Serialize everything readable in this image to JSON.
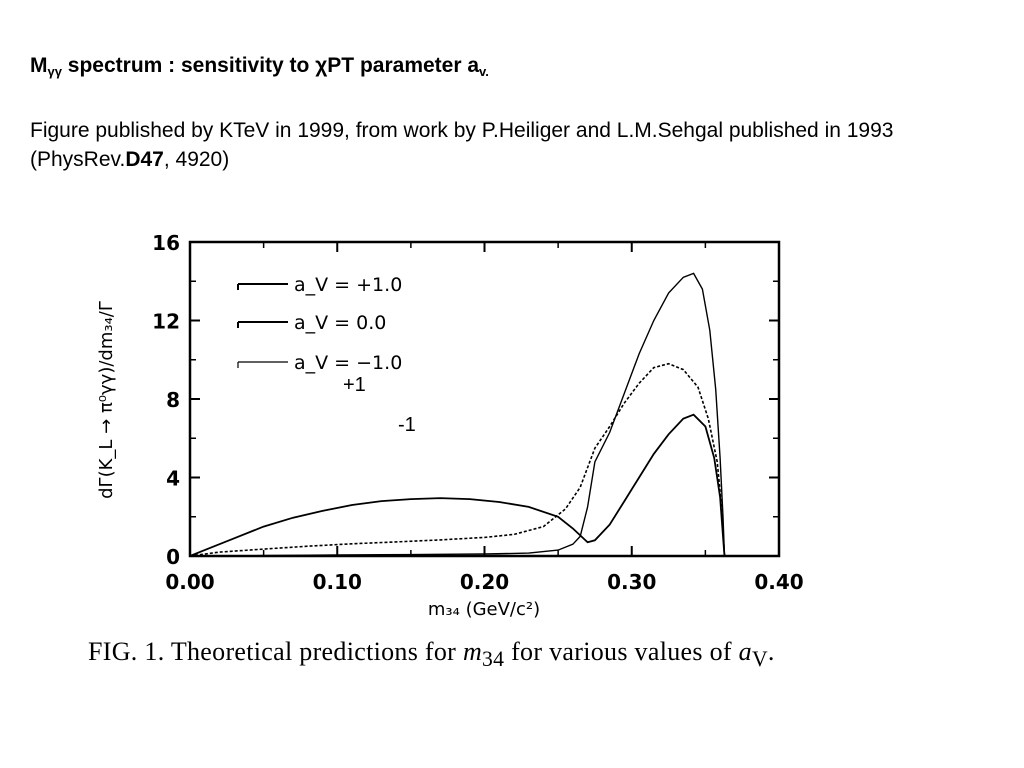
{
  "slide": {
    "title_main": "M",
    "title_sub": "γγ",
    "title_rest": " spectrum : sensitivity to χPT parameter a",
    "title_end_sub": "v.",
    "subtitle_a": "Figure published by KTeV in 1999, from work by P.Heiliger and L.M.Sehgal published in 1993 (PhysRev.",
    "subtitle_bold": "D47",
    "subtitle_b": ", 4920)"
  },
  "caption": {
    "label": "FIG. 1.",
    "text": " Theoretical predictions for ",
    "math": "m",
    "math_sub": "34",
    "text2": " for various values of ",
    "math2": "a",
    "math2_sub": "V",
    "end": "."
  },
  "annotations": {
    "plus_one": "+1",
    "minus_one": "-1"
  },
  "chart_data": {
    "type": "line",
    "xlabel": "m₃₄ (GeV/c²)",
    "ylabel": "dΓ(K_L → π⁰γγ)/dm₃₄/Γ",
    "xlim": [
      0.0,
      0.4
    ],
    "ylim": [
      0,
      16
    ],
    "x_ticks": [
      "0.00",
      "0.10",
      "0.20",
      "0.30",
      "0.40"
    ],
    "y_ticks": [
      "0",
      "4",
      "8",
      "12",
      "16"
    ],
    "legend_position": "top-left",
    "series": [
      {
        "name": "a_V = +1.0",
        "style": "solid",
        "points": [
          [
            0.0,
            0
          ],
          [
            0.01,
            0.3
          ],
          [
            0.03,
            0.9
          ],
          [
            0.05,
            1.5
          ],
          [
            0.07,
            1.95
          ],
          [
            0.09,
            2.3
          ],
          [
            0.11,
            2.6
          ],
          [
            0.13,
            2.8
          ],
          [
            0.15,
            2.9
          ],
          [
            0.17,
            2.95
          ],
          [
            0.19,
            2.9
          ],
          [
            0.21,
            2.75
          ],
          [
            0.23,
            2.5
          ],
          [
            0.25,
            2.0
          ],
          [
            0.26,
            1.4
          ],
          [
            0.27,
            0.7
          ],
          [
            0.275,
            0.8
          ],
          [
            0.285,
            1.6
          ],
          [
            0.295,
            2.8
          ],
          [
            0.305,
            4.0
          ],
          [
            0.315,
            5.2
          ],
          [
            0.325,
            6.2
          ],
          [
            0.335,
            7.0
          ],
          [
            0.342,
            7.2
          ],
          [
            0.35,
            6.6
          ],
          [
            0.356,
            5.0
          ],
          [
            0.36,
            3.0
          ],
          [
            0.362,
            1.0
          ],
          [
            0.363,
            0
          ]
        ]
      },
      {
        "name": "a_V = 0.0",
        "style": "dotted",
        "points": [
          [
            0.0,
            0
          ],
          [
            0.02,
            0.2
          ],
          [
            0.05,
            0.35
          ],
          [
            0.08,
            0.5
          ],
          [
            0.11,
            0.62
          ],
          [
            0.14,
            0.72
          ],
          [
            0.17,
            0.82
          ],
          [
            0.2,
            0.95
          ],
          [
            0.22,
            1.1
          ],
          [
            0.24,
            1.5
          ],
          [
            0.255,
            2.4
          ],
          [
            0.265,
            3.5
          ],
          [
            0.275,
            5.5
          ],
          [
            0.285,
            6.6
          ],
          [
            0.295,
            7.8
          ],
          [
            0.305,
            8.8
          ],
          [
            0.315,
            9.6
          ],
          [
            0.325,
            9.8
          ],
          [
            0.335,
            9.5
          ],
          [
            0.345,
            8.6
          ],
          [
            0.352,
            7.0
          ],
          [
            0.358,
            4.8
          ],
          [
            0.361,
            2.5
          ],
          [
            0.363,
            0
          ]
        ]
      },
      {
        "name": "a_V = −1.0",
        "style": "solid",
        "points": [
          [
            0.0,
            0
          ],
          [
            0.05,
            0.02
          ],
          [
            0.1,
            0.05
          ],
          [
            0.15,
            0.07
          ],
          [
            0.2,
            0.1
          ],
          [
            0.23,
            0.15
          ],
          [
            0.25,
            0.3
          ],
          [
            0.26,
            0.6
          ],
          [
            0.265,
            1.0
          ],
          [
            0.27,
            2.5
          ],
          [
            0.275,
            4.8
          ],
          [
            0.285,
            6.3
          ],
          [
            0.295,
            8.3
          ],
          [
            0.305,
            10.3
          ],
          [
            0.315,
            12.0
          ],
          [
            0.325,
            13.4
          ],
          [
            0.335,
            14.2
          ],
          [
            0.342,
            14.4
          ],
          [
            0.348,
            13.6
          ],
          [
            0.353,
            11.5
          ],
          [
            0.357,
            8.5
          ],
          [
            0.36,
            5.0
          ],
          [
            0.362,
            2.0
          ],
          [
            0.363,
            0
          ]
        ]
      }
    ]
  }
}
